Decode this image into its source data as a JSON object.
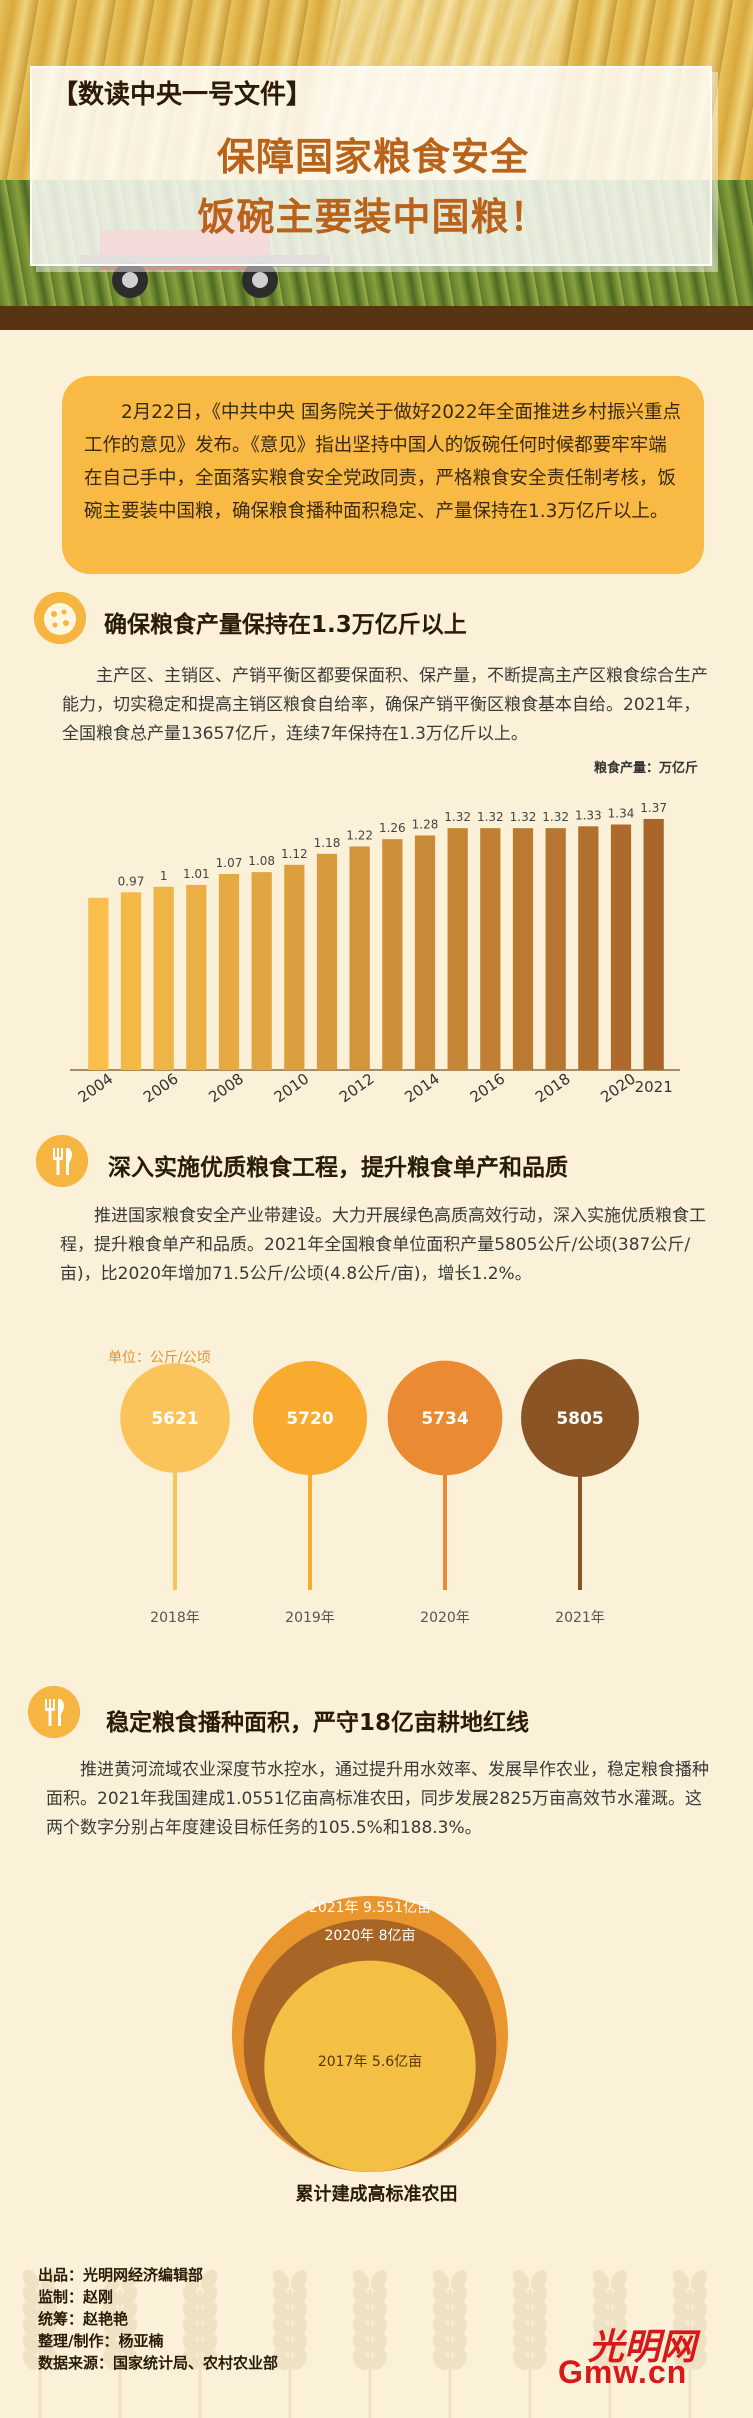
{
  "header": {
    "tag": "【数读中央一号文件】",
    "title_line1": "保障国家粮食安全",
    "title_line2": "饭碗主要装中国粮！"
  },
  "intro": {
    "text": "2月22日，《中共中央 国务院关于做好2022年全面推进乡村振兴重点工作的意见》发布。《意见》指出坚持中国人的饭碗任何时候都要牢牢端在自己手中，全面落实粮食安全党政同责，严格粮食安全责任制考核，饭碗主要装中国粮，确保粮食播种面积稳定、产量保持在1.3万亿斤以上。"
  },
  "section1": {
    "title": "确保粮食产量保持在1.3万亿斤以上",
    "text": "主产区、主销区、产销平衡区都要保面积、保产量，不断提高主产区粮食综合生产能力，切实稳定和提高主销区粮食自给率，确保产销平衡区粮食基本自给。2021年，全国粮食总产量13657亿斤，连续7年保持在1.3万亿斤以上。",
    "icon": "cookie-icon"
  },
  "section2": {
    "title": "深入实施优质粮食工程，提升粮食单产和品质",
    "text": "推进国家粮食安全产业带建设。大力开展绿色高质高效行动，深入实施优质粮食工程，提升粮食单产和品质。2021年全国粮食单位面积产量5805公斤/公顷(387公斤/亩)，比2020年增加71.5公斤/公顷(4.8公斤/亩)，增长1.2%。",
    "icon": "fork-knife-icon"
  },
  "section3": {
    "title": "稳定粮食播种面积，严守18亿亩耕地红线",
    "text": "推进黄河流域农业深度节水控水，通过提升用水效率、发展旱作农业，稳定粮食播种面积。2021年我国建成1.0551亿亩高标准农田，同步发展2825万亩高效节水灌溉。这两个数字分别占年度建设目标任务的105.5%和188.3%。",
    "icon": "fork-knife-icon",
    "caption": "累计建成高标准农田"
  },
  "chart_data": [
    {
      "type": "bar",
      "ylabel": "粮食产量：万亿斤",
      "categories": [
        "2004",
        "2005",
        "2006",
        "2007",
        "2008",
        "2009",
        "2010",
        "2011",
        "2012",
        "2013",
        "2014",
        "2015",
        "2016",
        "2017",
        "2018",
        "2019",
        "2020",
        "2021"
      ],
      "x_tick_labels": [
        "2004",
        "2006",
        "2008",
        "2010",
        "2012",
        "2014",
        "2016",
        "2018",
        "2020",
        "2021"
      ],
      "values": [
        0.94,
        0.97,
        1.0,
        1.01,
        1.07,
        1.08,
        1.12,
        1.18,
        1.22,
        1.26,
        1.28,
        1.32,
        1.32,
        1.32,
        1.32,
        1.33,
        1.34,
        1.37
      ],
      "value_labels": [
        "",
        "0.97",
        "1",
        "1.01",
        "1.07",
        "1.08",
        "1.12",
        "1.18",
        "1.22",
        "1.26",
        "1.28",
        "1.32",
        "1.32",
        "1.32",
        "1.32",
        "1.33",
        "1.34",
        "1.37"
      ],
      "colors": {
        "start": "#f9bf4a",
        "end": "#a8652a"
      }
    },
    {
      "type": "scatter",
      "unit_label": "单位：公斤/公顷",
      "categories": [
        "2018年",
        "2019年",
        "2020年",
        "2021年"
      ],
      "values": [
        5621,
        5720,
        5734,
        5805
      ],
      "colors": [
        "#fbc45a",
        "#f8ab2e",
        "#ea8a33",
        "#8b5425"
      ]
    },
    {
      "type": "pie",
      "series": [
        {
          "label": "2021年 9.551亿亩",
          "value": 9.551,
          "color": "#e9962f"
        },
        {
          "label": "2020年 8亿亩",
          "value": 8,
          "color": "#a96526"
        },
        {
          "label": "2017年 5.6亿亩",
          "value": 5.6,
          "color": "#f4c043"
        }
      ]
    }
  ],
  "credits": [
    "出品：光明网经济编辑部",
    "监制：赵刚",
    "统筹：赵艳艳",
    "整理/制作：杨亚楠",
    "数据来源：国家统计局、农村农业部"
  ],
  "logo": {
    "text": "Gmw.cn",
    "cn": "光明网"
  }
}
